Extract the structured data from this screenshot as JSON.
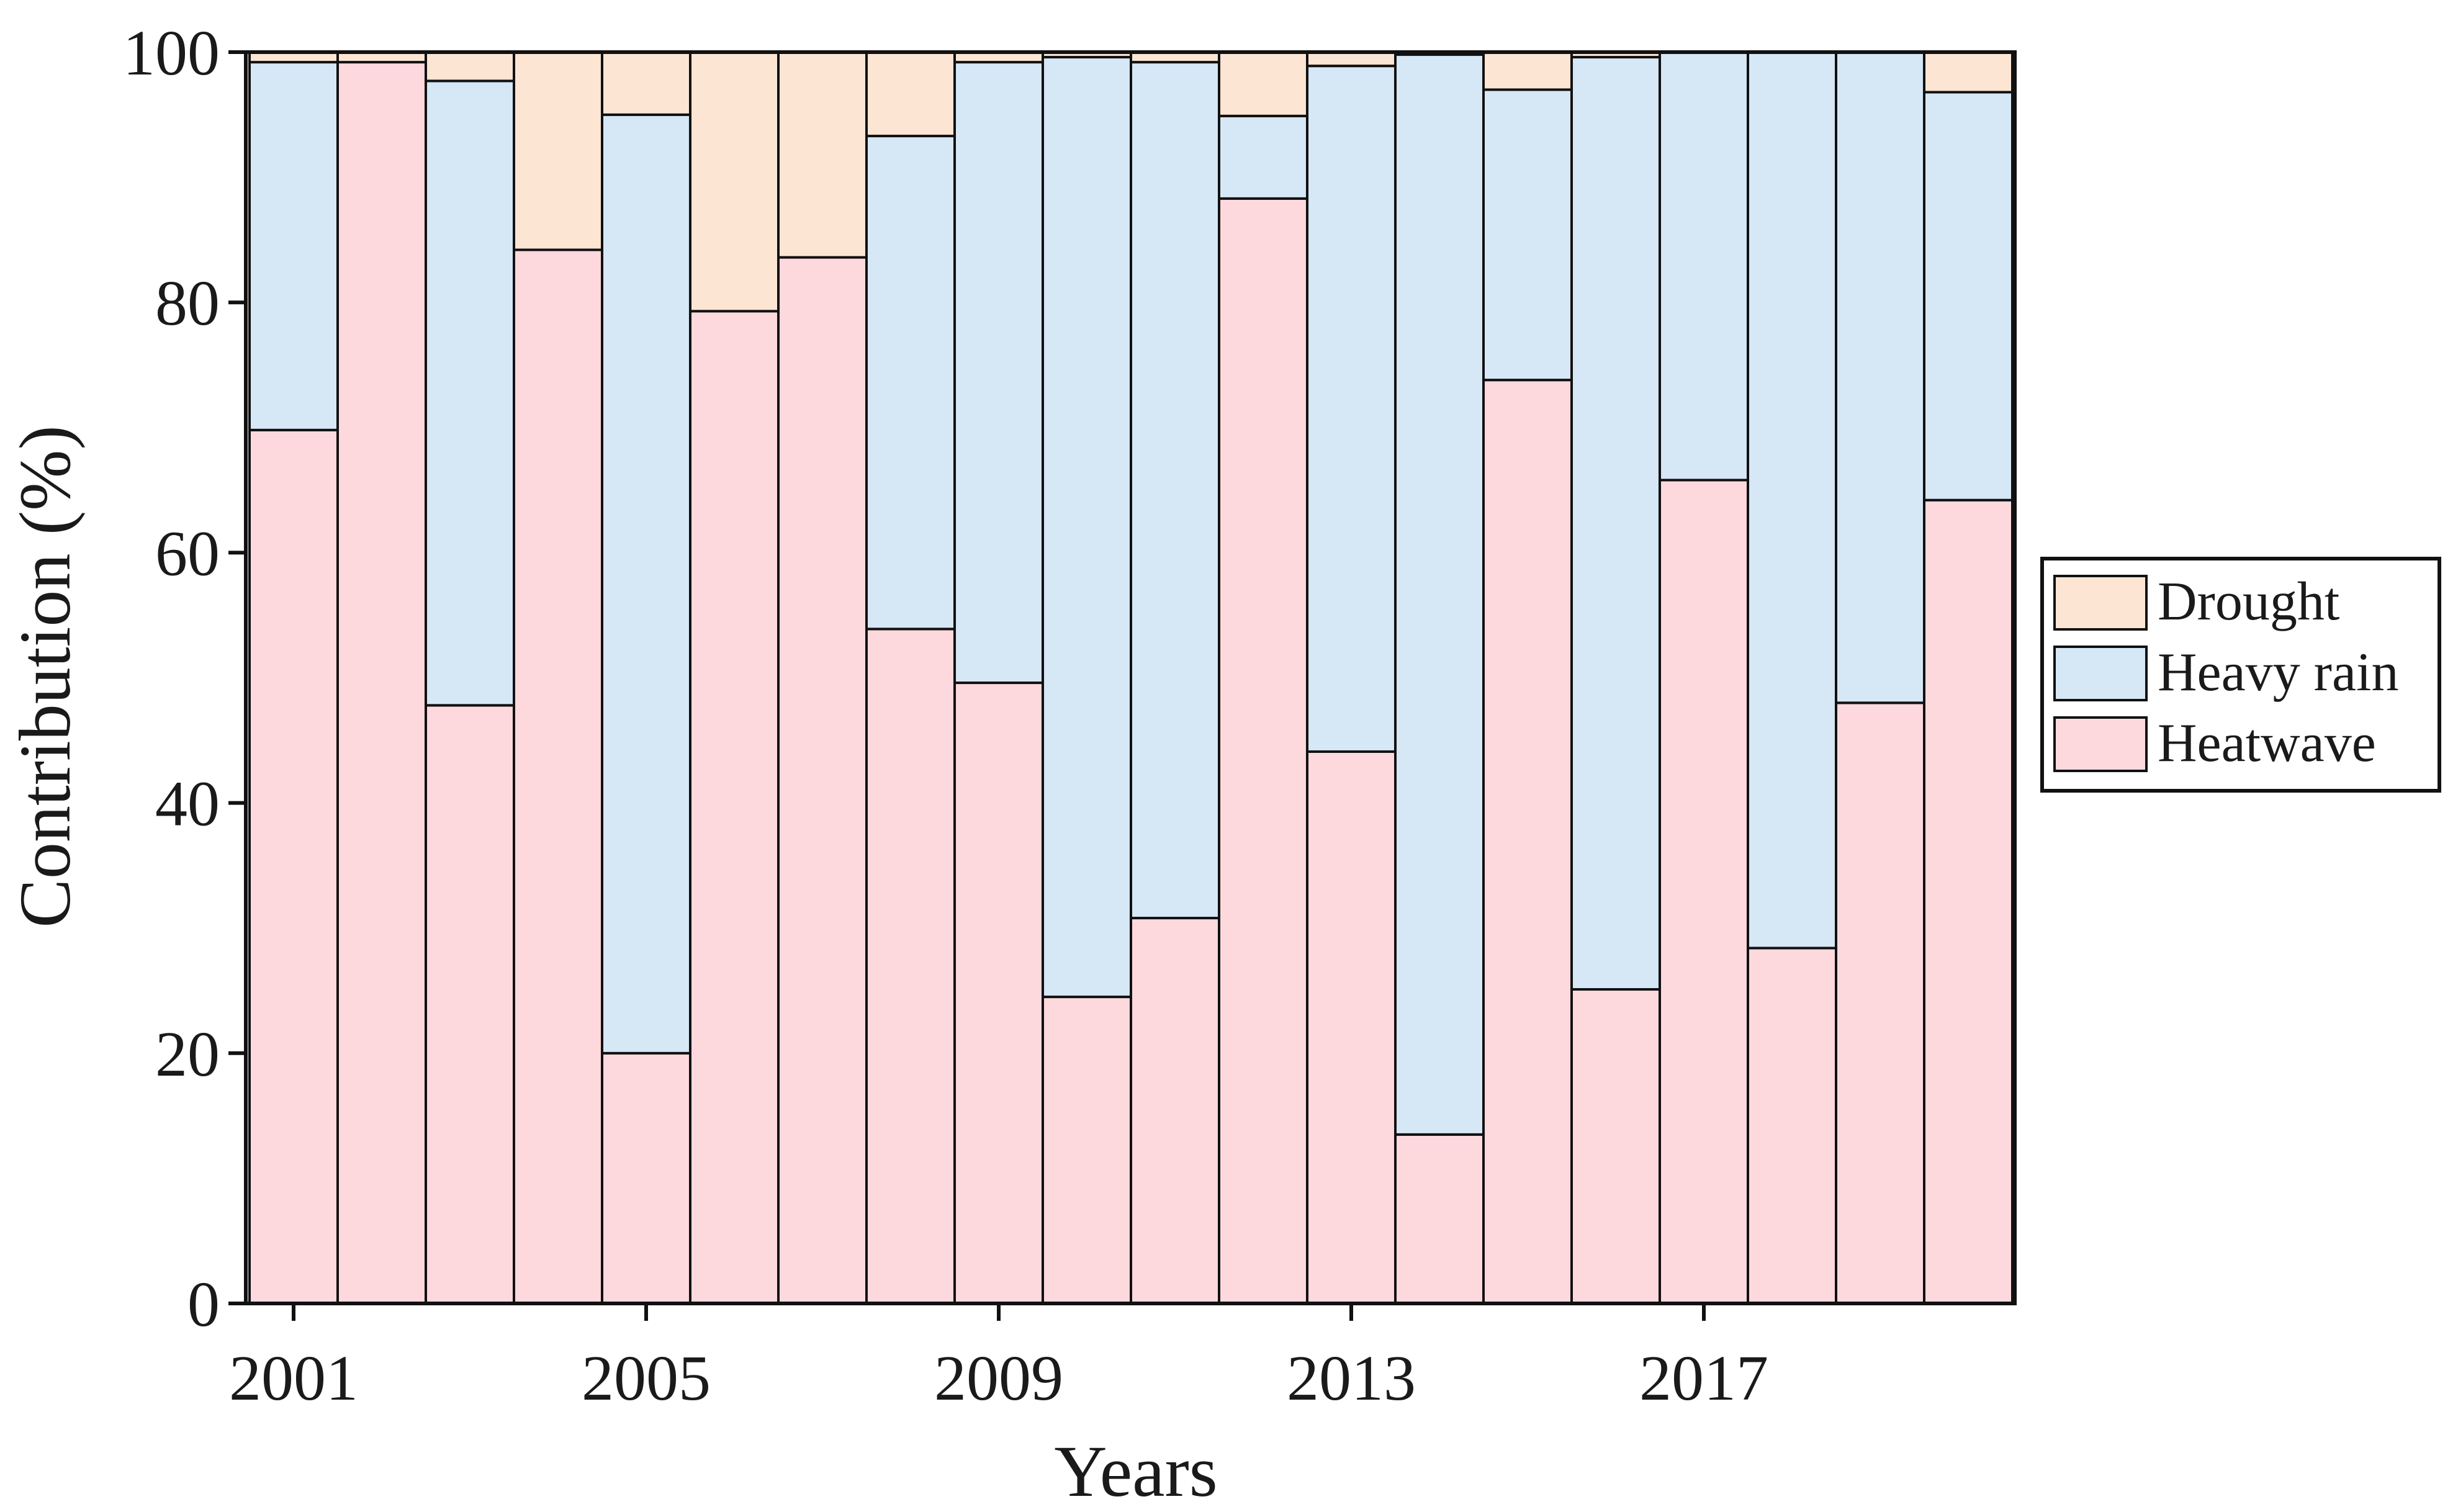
{
  "chart_data": {
    "type": "bar",
    "stacked": true,
    "xlabel": "Years",
    "ylabel": "Contribution (%)",
    "ylim": [
      0,
      100
    ],
    "yticks": [
      0,
      20,
      40,
      60,
      80,
      100
    ],
    "xticks": [
      2001,
      2005,
      2009,
      2013,
      2017
    ],
    "xtick_labels": [
      "2001",
      "2005",
      "2009",
      "2013",
      "2017"
    ],
    "grid": false,
    "legend_position": "right",
    "categories": [
      2001,
      2002,
      2003,
      2004,
      2005,
      2006,
      2007,
      2008,
      2009,
      2010,
      2011,
      2012,
      2013,
      2014,
      2015,
      2016,
      2017,
      2018,
      2019,
      2020
    ],
    "series": [
      {
        "name": "Heatwave",
        "color": "#fdd9de",
        "values": [
          69.8,
          99.2,
          47.8,
          84.2,
          20.0,
          79.3,
          83.6,
          53.9,
          49.6,
          24.5,
          30.8,
          88.3,
          44.1,
          13.5,
          73.8,
          25.1,
          65.8,
          28.4,
          48.0,
          64.2
        ]
      },
      {
        "name": "Heavy rain",
        "color": "#d6e7f6",
        "values": [
          29.4,
          0.0,
          49.9,
          0.0,
          75.0,
          0.0,
          0.0,
          39.4,
          49.6,
          75.1,
          68.4,
          6.6,
          54.8,
          86.3,
          23.2,
          74.5,
          34.2,
          71.6,
          52.0,
          32.6
        ]
      },
      {
        "name": "Drought",
        "color": "#fde5d3",
        "values": [
          0.8,
          0.8,
          2.3,
          15.8,
          5.0,
          20.7,
          16.4,
          6.7,
          0.8,
          0.4,
          0.8,
          5.1,
          1.1,
          0.2,
          3.0,
          0.4,
          0.0,
          0.0,
          0.0,
          3.2
        ]
      }
    ],
    "legend_order": [
      "Drought",
      "Heavy rain",
      "Heatwave"
    ]
  }
}
